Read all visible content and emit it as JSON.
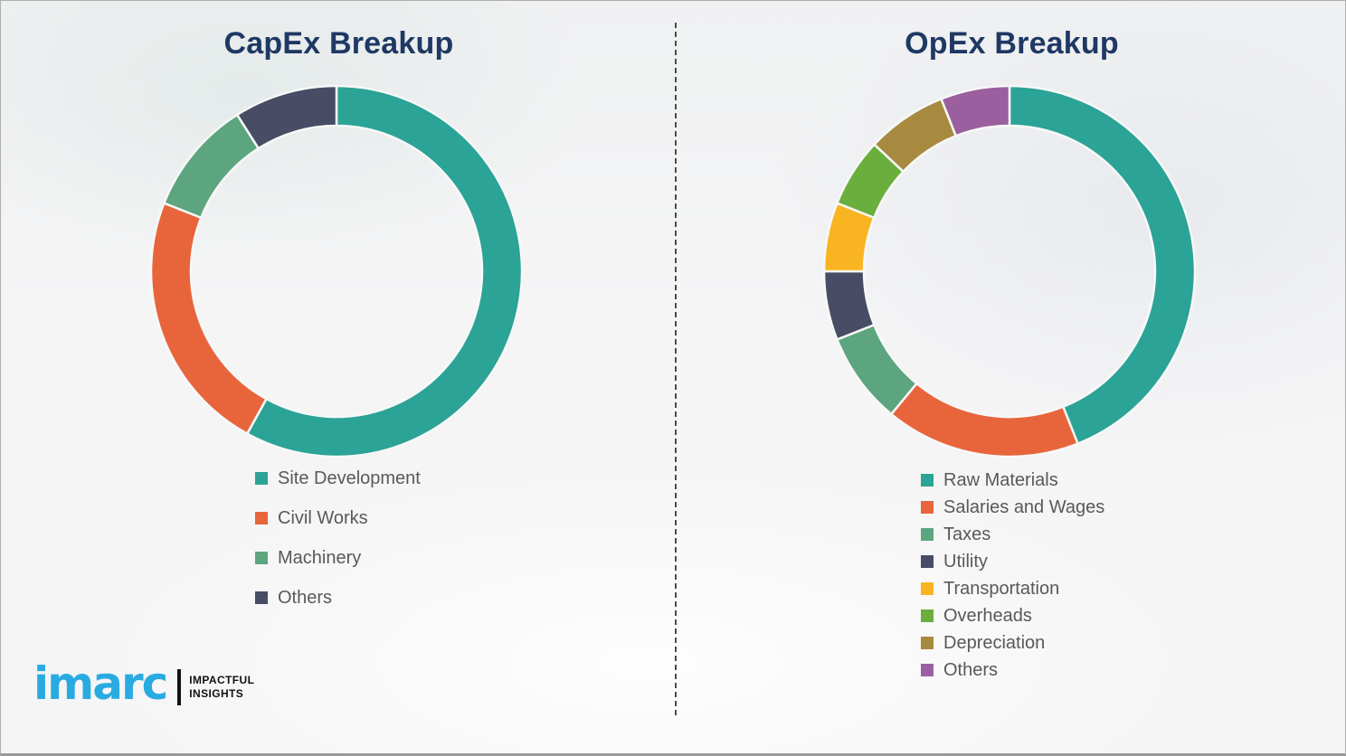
{
  "colors": {
    "title_navy": "#1F3864",
    "legend_text_gray": "#595959",
    "divider_gray": "#4c4c4c",
    "background": "#f4f4f5",
    "segment_gap_white": "#f7f8f8",
    "logo_blue": "#29ABE2",
    "logo_black": "#121212"
  },
  "chart_data": [
    {
      "type": "pie",
      "subtype": "donut",
      "title": "CapEx Breakup",
      "categories": [
        "Site Development",
        "Civil Works",
        "Machinery",
        "Others"
      ],
      "values": [
        58,
        23,
        10,
        9
      ],
      "colors": [
        "#2BA396",
        "#E8653C",
        "#5CA57E",
        "#484C64"
      ],
      "start_angle_deg": 0,
      "direction": "clockwise",
      "legend_position": "below-left",
      "data_labels": false
    },
    {
      "type": "pie",
      "subtype": "donut",
      "title": "OpEx Breakup",
      "categories": [
        "Raw Materials",
        "Salaries and Wages",
        "Taxes",
        "Utility",
        "Transportation",
        "Overheads",
        "Depreciation",
        "Others"
      ],
      "values": [
        44,
        17,
        8,
        6,
        6,
        6,
        7,
        6
      ],
      "colors": [
        "#2BA396",
        "#E8653C",
        "#5CA57E",
        "#484C64",
        "#F9B521",
        "#6AAF3D",
        "#A78A3F",
        "#9B5F9F"
      ],
      "start_angle_deg": 0,
      "direction": "clockwise",
      "legend_position": "below-left",
      "data_labels": false
    }
  ],
  "logo": {
    "brand": "imarc",
    "tagline_line1": "IMPACTFUL",
    "tagline_line2": "INSIGHTS"
  }
}
